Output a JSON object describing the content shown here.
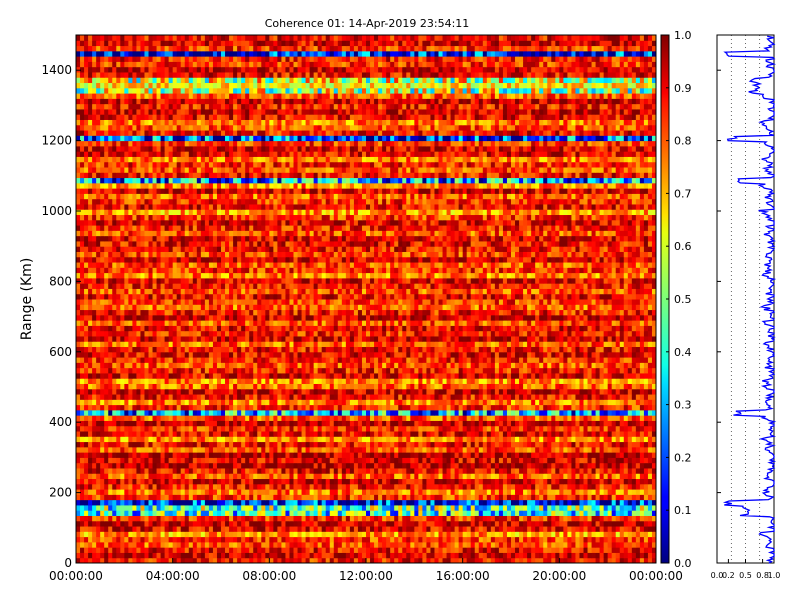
{
  "figure": {
    "title": "Coherence 01: 14-Apr-2019 23:54:11"
  },
  "chart_data": [
    {
      "type": "heatmap",
      "title": "Coherence 01: 14-Apr-2019 23:54:11",
      "xlabel": "",
      "ylabel": "Range (Km)",
      "x_ticks": [
        "00:00:00",
        "04:00:00",
        "08:00:00",
        "12:00:00",
        "16:00:00",
        "20:00:00",
        "00:00:00"
      ],
      "x_range_hours": [
        0,
        24
      ],
      "y_ticks": [
        0,
        200,
        400,
        600,
        800,
        1000,
        1200,
        1400
      ],
      "ylim": [
        0,
        1500
      ],
      "range_bins": 100,
      "time_bins": 144,
      "colorbar": {
        "ticks": [
          0.0,
          0.1,
          0.2,
          0.3,
          0.4,
          0.5,
          0.6,
          0.7,
          0.8,
          0.9,
          1.0
        ],
        "range": [
          0,
          1
        ],
        "colormap": "jet"
      },
      "row_coherence": [
        0.86,
        0.92,
        0.88,
        0.8,
        0.82,
        0.72,
        0.89,
        0.93,
        0.84,
        0.4,
        0.45,
        0.12,
        0.83,
        0.76,
        0.86,
        0.91,
        0.78,
        0.88,
        0.94,
        0.9,
        0.95,
        0.81,
        0.88,
        0.74,
        0.89,
        0.84,
        0.93,
        0.79,
        0.28,
        0.84,
        0.75,
        0.87,
        0.92,
        0.78,
        0.74,
        0.9,
        0.86,
        0.8,
        0.85,
        0.9,
        0.87,
        0.78,
        0.92,
        0.85,
        0.89,
        0.8,
        0.93,
        0.86,
        0.78,
        0.83,
        0.88,
        0.8,
        0.86,
        0.91,
        0.75,
        0.84,
        0.8,
        0.9,
        0.82,
        0.87,
        0.88,
        0.9,
        0.8,
        0.86,
        0.91,
        0.83,
        0.72,
        0.88,
        0.84,
        0.78,
        0.92,
        0.74,
        0.26,
        0.87,
        0.8,
        0.85,
        0.75,
        0.89,
        0.91,
        0.82,
        0.18,
        0.87,
        0.8,
        0.75,
        0.88,
        0.92,
        0.86,
        0.93,
        0.79,
        0.55,
        0.64,
        0.57,
        0.88,
        0.93,
        0.84,
        0.86,
        0.11,
        0.83,
        0.91,
        0.88
      ]
    },
    {
      "type": "line",
      "title": "",
      "xlabel": "",
      "ylabel": "",
      "x_ticks": [
        "0.0",
        "0.2",
        "0.5",
        "0.8",
        "1.0"
      ],
      "xlim": [
        0,
        1
      ],
      "ylim": [
        0,
        1500
      ],
      "y_ticks": [
        0,
        200,
        400,
        600,
        800,
        1000,
        1200,
        1400
      ],
      "guide_lines_x": [
        0.25,
        0.5,
        0.75
      ],
      "series": [
        {
          "color": "#0000ff",
          "source": "row_coherence"
        }
      ]
    }
  ],
  "colors": {
    "profile_line": "#0000ff",
    "axes": "#000000"
  }
}
